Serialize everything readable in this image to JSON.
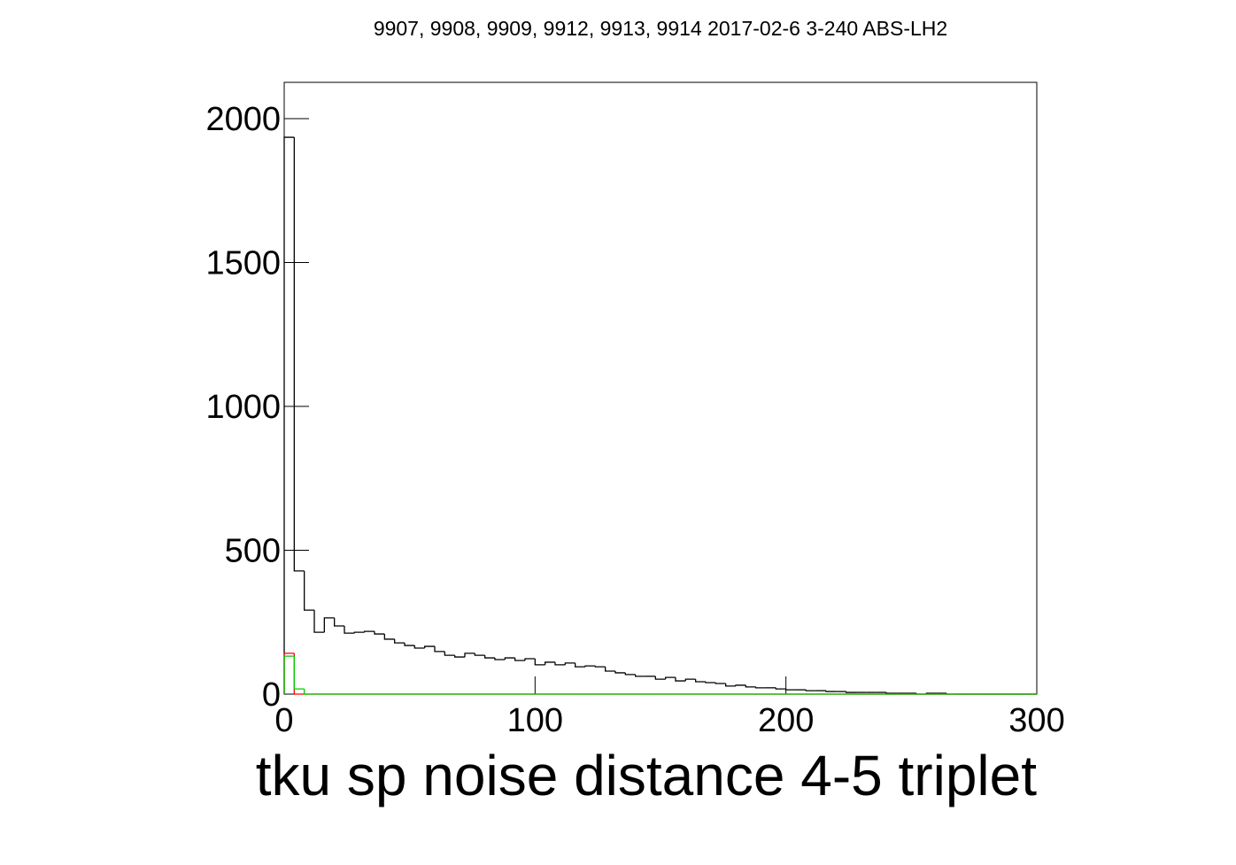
{
  "chart_data": {
    "type": "histogram",
    "title": "9907, 9908, 9909, 9912, 9913, 9914 2017-02-6 3-240 ABS-LH2",
    "x_label": "tku sp noise distance 4-5 triplet",
    "bins": [
      0,
      4,
      8,
      12,
      16,
      20,
      24,
      28,
      32,
      36,
      40,
      44,
      48,
      52,
      56,
      60,
      64,
      68,
      72,
      76,
      80,
      84,
      88,
      92,
      96,
      100,
      104,
      108,
      112,
      116,
      120,
      124,
      128,
      132,
      136,
      140,
      144,
      148,
      152,
      156,
      160,
      164,
      168,
      172,
      176,
      180,
      184,
      188,
      192,
      196,
      200,
      204,
      208,
      212,
      216,
      220,
      224,
      228,
      232,
      236,
      240,
      244,
      248,
      252,
      256,
      260,
      264,
      268,
      272,
      276,
      280,
      284,
      288,
      292,
      296,
      300
    ],
    "series": [
      {
        "color": "#000000",
        "values": [
          1935,
          428,
          292,
          215,
          265,
          237,
          212,
          215,
          218,
          209,
          191,
          178,
          169,
          160,
          166,
          148,
          135,
          129,
          142,
          135,
          126,
          120,
          126,
          117,
          123,
          102,
          111,
          102,
          108,
          95,
          98,
          95,
          80,
          74,
          68,
          62,
          62,
          52,
          58,
          46,
          52,
          43,
          40,
          37,
          28,
          31,
          25,
          22,
          22,
          18,
          15,
          15,
          12,
          12,
          9,
          9,
          6,
          6,
          6,
          6,
          3,
          3,
          3,
          0,
          3,
          3,
          0,
          0,
          0,
          0,
          0,
          0,
          0,
          0,
          0
        ]
      },
      {
        "color": "#ff0000",
        "values": [
          142,
          0,
          0,
          0,
          0,
          0,
          0,
          0,
          0,
          0,
          0,
          0,
          0,
          0,
          0,
          0,
          0,
          0,
          0,
          0,
          0,
          0,
          0,
          0,
          0,
          0,
          0,
          0,
          0,
          0,
          0,
          0,
          0,
          0,
          0,
          0,
          0,
          0,
          0,
          0,
          0,
          0,
          0,
          0,
          0,
          0,
          0,
          0,
          0,
          0,
          0,
          0,
          0,
          0,
          0,
          0,
          0,
          0,
          0,
          0,
          0,
          0,
          0,
          0,
          0,
          0,
          0,
          0,
          0,
          0,
          0,
          0,
          0,
          0,
          0
        ]
      },
      {
        "color": "#00cc00",
        "values": [
          132,
          18,
          0,
          0,
          0,
          0,
          0,
          0,
          0,
          0,
          0,
          0,
          0,
          0,
          0,
          0,
          0,
          0,
          0,
          0,
          0,
          0,
          0,
          0,
          0,
          0,
          0,
          0,
          0,
          0,
          0,
          0,
          0,
          0,
          0,
          0,
          0,
          0,
          0,
          0,
          0,
          0,
          0,
          0,
          0,
          0,
          0,
          0,
          0,
          0,
          0,
          0,
          0,
          0,
          0,
          0,
          0,
          0,
          0,
          0,
          0,
          0,
          0,
          0,
          0,
          0,
          0,
          0,
          0,
          0,
          0,
          0,
          0,
          0,
          0
        ]
      }
    ],
    "xlim": [
      0,
      300
    ],
    "xticks": [
      0,
      100,
      200,
      300
    ],
    "ylim": [
      0,
      2126
    ],
    "yticks": [
      0,
      500,
      1000,
      1500,
      2000
    ]
  }
}
